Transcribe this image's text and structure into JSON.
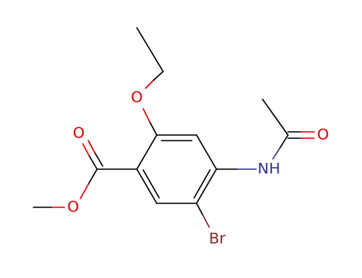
{
  "atoms": [
    {
      "label": "O"
    },
    {
      "label": "O"
    },
    {
      "label": "O"
    },
    {
      "label": "NH"
    },
    {
      "label": "O"
    },
    {
      "label": "Br"
    }
  ]
}
